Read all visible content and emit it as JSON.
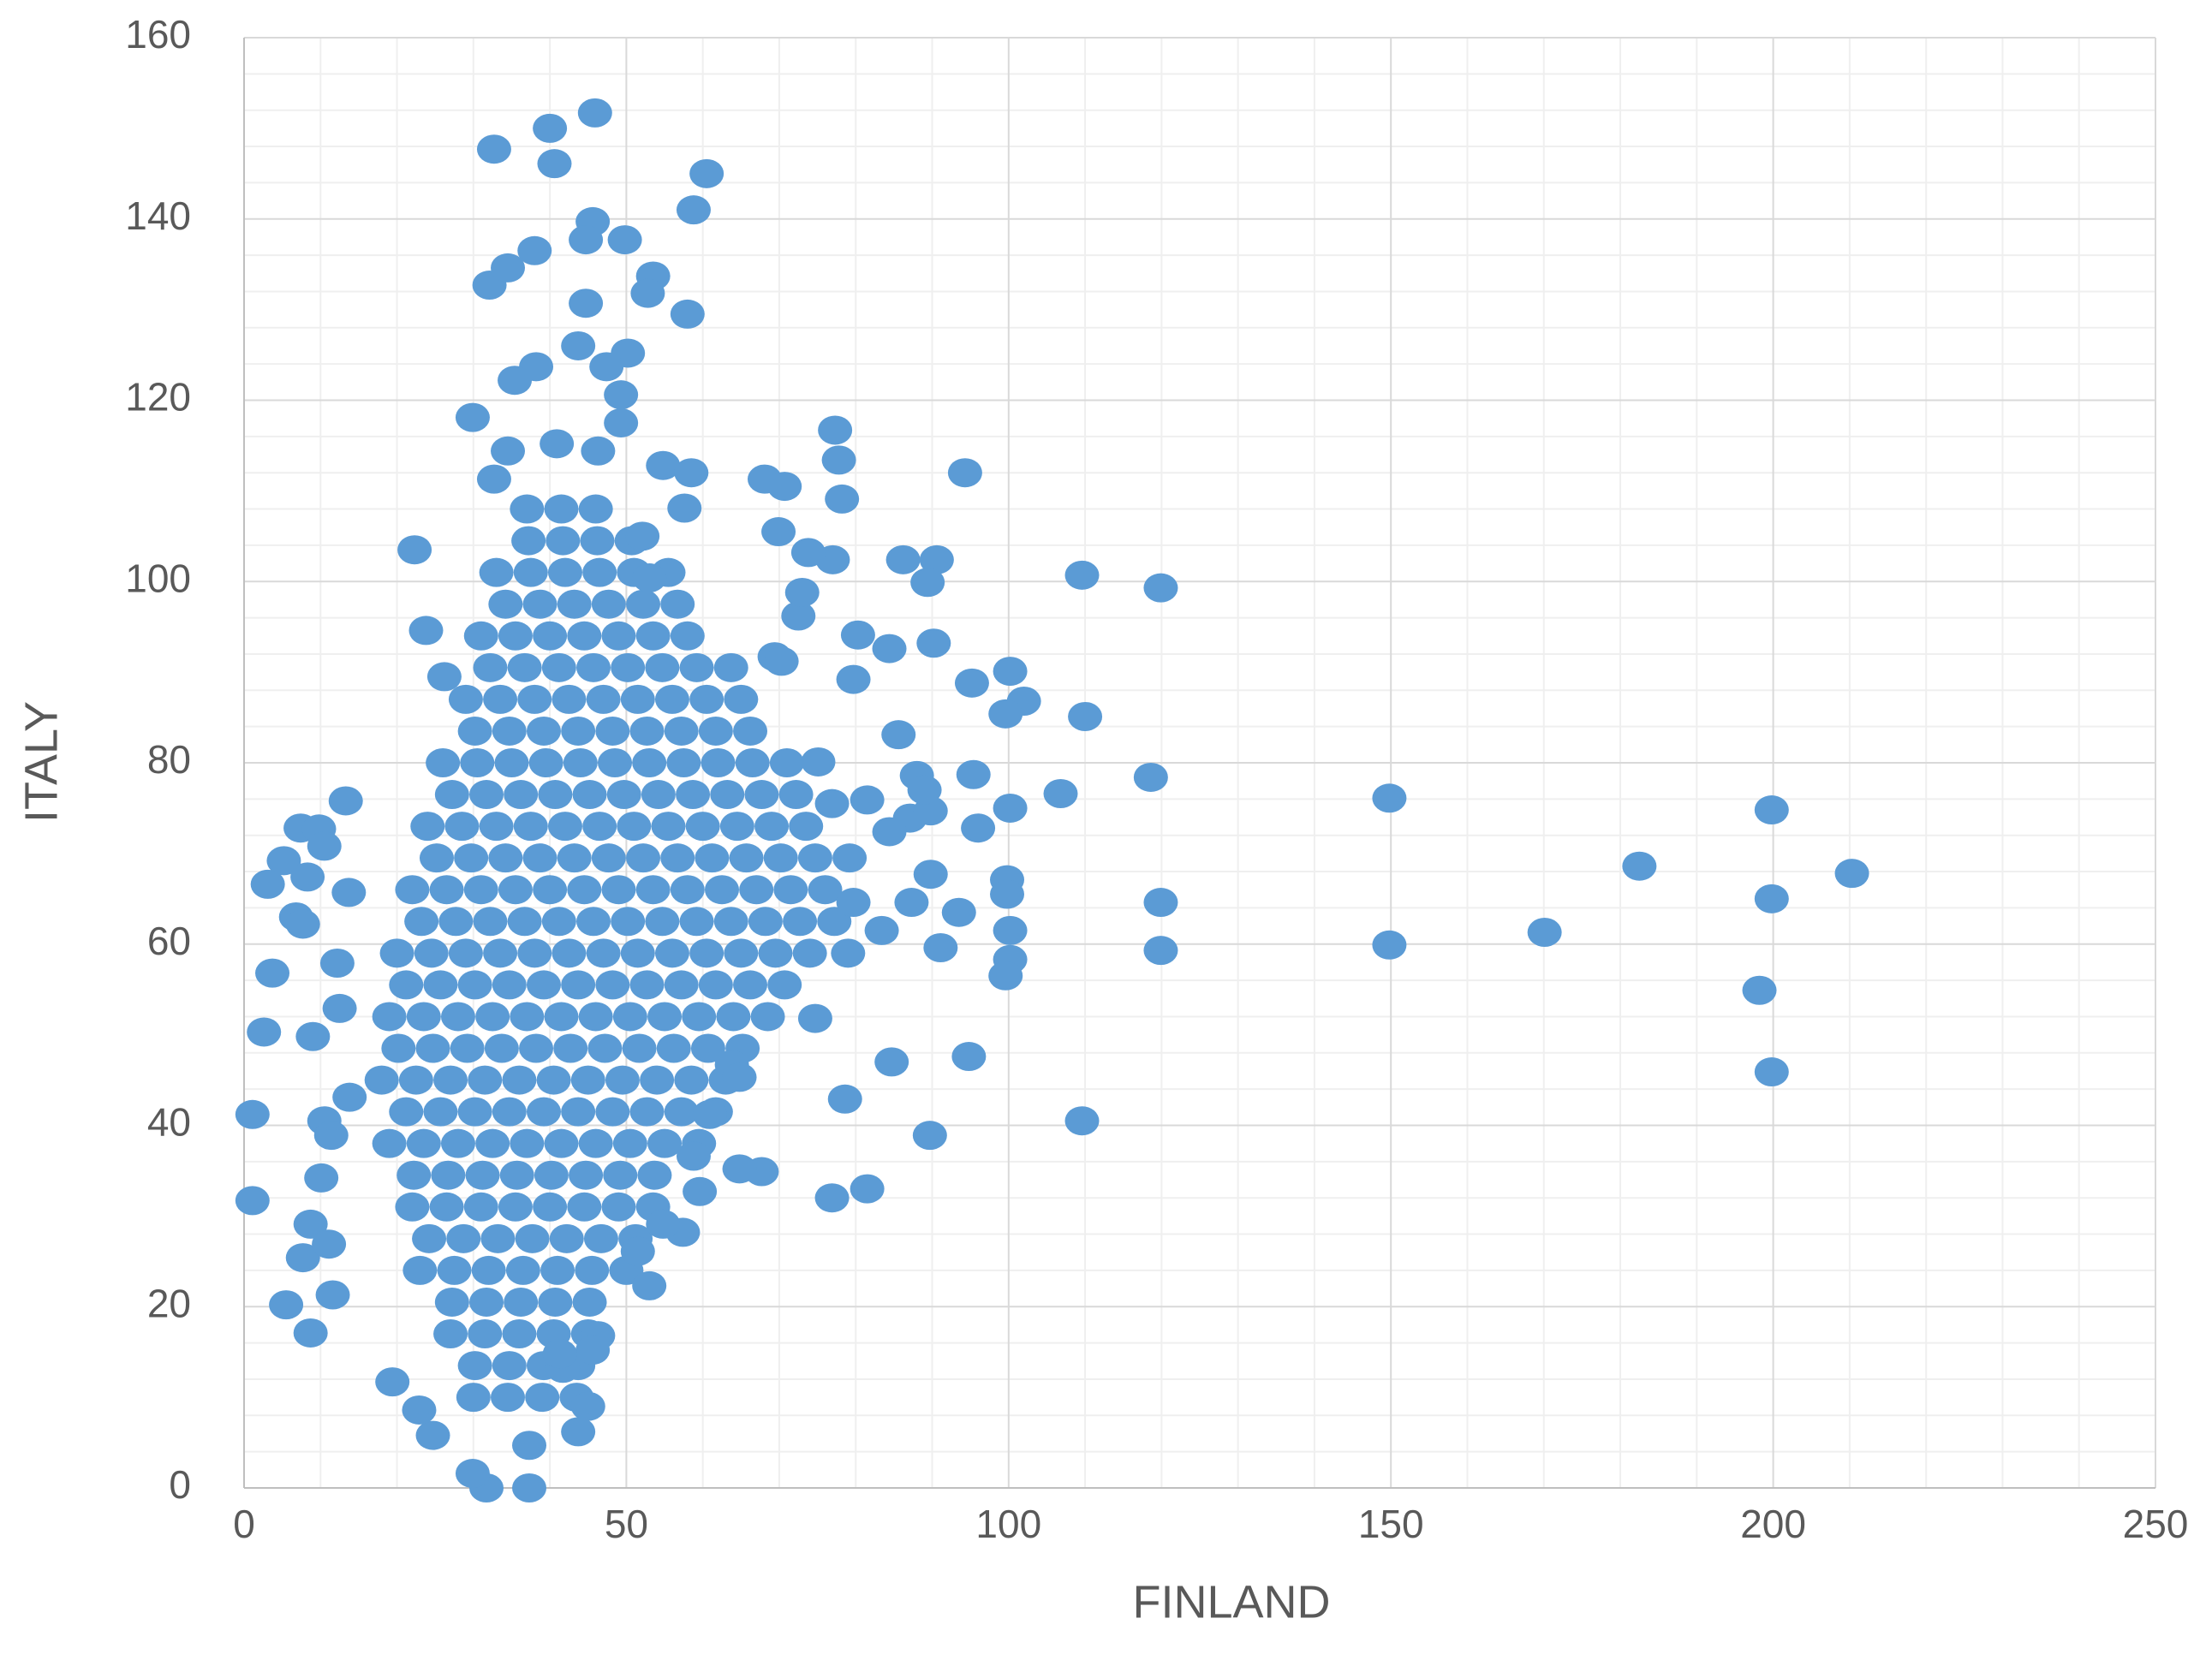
{
  "chart_data": {
    "type": "scatter",
    "x_label": "FINLAND",
    "y_label": "ITALY",
    "color": "#5b9bd5",
    "grid": true,
    "xlim": [
      0,
      250
    ],
    "xticks": [
      0,
      50,
      100,
      150,
      200,
      250
    ],
    "ylim": [
      0,
      160
    ],
    "yticks": [
      0,
      20,
      40,
      60,
      80,
      100,
      120,
      140,
      160
    ],
    "x": [
      30,
      34.5,
      39,
      43.5,
      30.2,
      34.7,
      39.2,
      43.7,
      27,
      31.5,
      36,
      40.5,
      45,
      27.2,
      31.7,
      36.2,
      40.7,
      45.2,
      23,
      27.5,
      32,
      36.5,
      41,
      45.5,
      50,
      24.2,
      28.7,
      33.2,
      37.7,
      42.2,
      46.7,
      51.2,
      22,
      26.5,
      31,
      35.5,
      40,
      44.5,
      49,
      53.5,
      22.2,
      26.7,
      31.2,
      35.7,
      40.2,
      44.7,
      49.2,
      53.7,
      19,
      23.5,
      28,
      32.5,
      37,
      41.5,
      46,
      50.5,
      55,
      59.5,
      21.2,
      25.7,
      30.2,
      34.7,
      39.2,
      43.7,
      48.2,
      52.7,
      57.2,
      61.7,
      18,
      22.5,
      27,
      31.5,
      36,
      40.5,
      45,
      49.5,
      54,
      58.5,
      63,
      20.2,
      24.7,
      29.2,
      33.7,
      38.2,
      42.7,
      47.2,
      51.7,
      56.2,
      60.7,
      65.2,
      19,
      23.5,
      28,
      32.5,
      37,
      41.5,
      46,
      50.5,
      55,
      59.5,
      64,
      68.5,
      21.2,
      25.7,
      30.2,
      34.7,
      39.2,
      43.7,
      48.2,
      52.7,
      57.2,
      61.7,
      66.2,
      70.7,
      20,
      24.5,
      29,
      33.5,
      38,
      42.5,
      47,
      51.5,
      56,
      60.5,
      65,
      69.5,
      74,
      23.2,
      27.7,
      32.2,
      36.7,
      41.2,
      45.7,
      50.2,
      54.7,
      59.2,
      63.7,
      68.2,
      72.7,
      77.2,
      22,
      26.5,
      31,
      35.5,
      40,
      44.5,
      49,
      53.5,
      58,
      62.5,
      67,
      71.5,
      76,
      25.2,
      29.7,
      34.2,
      38.7,
      43.2,
      47.7,
      52.2,
      56.7,
      61.2,
      65.7,
      70.2,
      74.7,
      79.2,
      24,
      28.5,
      33,
      37.5,
      42,
      46.5,
      51,
      55.5,
      60,
      64.5,
      69,
      73.5,
      27.2,
      31.7,
      36.2,
      40.7,
      45.2,
      49.7,
      54.2,
      58.7,
      63.2,
      67.7,
      72.2,
      26,
      30.5,
      35,
      39.5,
      44,
      48.5,
      53,
      57.5,
      62,
      66.5,
      71,
      30.2,
      34.7,
      39.2,
      43.7,
      48.2,
      52.7,
      57.2,
      61.7,
      66.2,
      29,
      33.5,
      38,
      42.5,
      47,
      51.5,
      56,
      60.5,
      65,
      32.2,
      36.7,
      41.2,
      45.7,
      50.2,
      54.7,
      59.2,
      63.7,
      31,
      35.5,
      40,
      44.5,
      49,
      53.5,
      58,
      34.2,
      38.7,
      43.2,
      47.7,
      52.2,
      56.7,
      33,
      37.5,
      42,
      46.5,
      51,
      55.5,
      37.2,
      41.7,
      46.2,
      50.7,
      37,
      41.5,
      46,
      210.3,
      199.8,
      199.8,
      199.8,
      198.2,
      182.5,
      170.1,
      149.8,
      149.8,
      119.9,
      119.9,
      119.9,
      118.6,
      109.6,
      110,
      109.6,
      106.8,
      100.2,
      102,
      99.6,
      100.2,
      99.8,
      99.8,
      100.2,
      100.2,
      99.6,
      94.3,
      95.2,
      95.4,
      96,
      94.8,
      89.7,
      86.2,
      90.6,
      89.4,
      90.2,
      84.4,
      85.6,
      91.1,
      93.5,
      84.7,
      81.5,
      76.9,
      78.6,
      79,
      77.3,
      77.8,
      78.2,
      80.3,
      79.7,
      81.5,
      77,
      73.8,
      68.1,
      70.7,
      69.9,
      72.5,
      73,
      69.4,
      70.3,
      67.7,
      64.8,
      74.7,
      60.5,
      58.8,
      58,
      53.5,
      52.8,
      49.8,
      45.9,
      40,
      40.6,
      32.7,
      45.6,
      44.7,
      38,
      32.1,
      34.5,
      44.7,
      29.9,
      22.3,
      23.8,
      26.2,
      13.3,
      7.4,
      9.8,
      10.5,
      5.2,
      8.3,
      3.1,
      6.8,
      7.7,
      13.7,
      12.2,
      3.7,
      2.6,
      9,
      12.5,
      1.1,
      1.1,
      10.1,
      8.7,
      7.7,
      11.1,
      11.6,
      5.5,
      8.7,
      19.4,
      10.5,
      11.4,
      13.8,
      53,
      51.5,
      57.4,
      54.8,
      46.3,
      45.6,
      45,
      43.7,
      37.3,
      31.7,
      29.9,
      24.7,
      22.9,
      41.7,
      41.3,
      37.3,
      59.6,
      58.8,
      60.9,
      63.8,
      64.8,
      87.3,
      89.8,
      87.1,
      88,
      89.8,
      89,
      84.4,
      83.4,
      79.7,
      76.9,
      75.1,
      53,
      52.1,
      57.6,
      54.8,
      58.5,
      49.3,
      49.3,
      50.2,
      47.4,
      43.7,
      38.2,
      35.4,
      32.7,
      34.5,
      40.9,
      46.3
    ],
    "values": [
      10,
      10,
      10,
      10,
      13.5,
      13.5,
      13.5,
      13.5,
      17,
      17,
      17,
      17,
      17,
      20.5,
      20.5,
      20.5,
      20.5,
      20.5,
      24,
      24,
      24,
      24,
      24,
      24,
      24,
      27.5,
      27.5,
      27.5,
      27.5,
      27.5,
      27.5,
      27.5,
      31,
      31,
      31,
      31,
      31,
      31,
      31,
      31,
      34.5,
      34.5,
      34.5,
      34.5,
      34.5,
      34.5,
      34.5,
      34.5,
      38,
      38,
      38,
      38,
      38,
      38,
      38,
      38,
      38,
      38,
      41.5,
      41.5,
      41.5,
      41.5,
      41.5,
      41.5,
      41.5,
      41.5,
      41.5,
      41.5,
      45,
      45,
      45,
      45,
      45,
      45,
      45,
      45,
      45,
      45,
      45,
      48.5,
      48.5,
      48.5,
      48.5,
      48.5,
      48.5,
      48.5,
      48.5,
      48.5,
      48.5,
      48.5,
      52,
      52,
      52,
      52,
      52,
      52,
      52,
      52,
      52,
      52,
      52,
      52,
      55.5,
      55.5,
      55.5,
      55.5,
      55.5,
      55.5,
      55.5,
      55.5,
      55.5,
      55.5,
      55.5,
      55.5,
      59,
      59,
      59,
      59,
      59,
      59,
      59,
      59,
      59,
      59,
      59,
      59,
      59,
      62.5,
      62.5,
      62.5,
      62.5,
      62.5,
      62.5,
      62.5,
      62.5,
      62.5,
      62.5,
      62.5,
      62.5,
      62.5,
      66,
      66,
      66,
      66,
      66,
      66,
      66,
      66,
      66,
      66,
      66,
      66,
      66,
      69.5,
      69.5,
      69.5,
      69.5,
      69.5,
      69.5,
      69.5,
      69.5,
      69.5,
      69.5,
      69.5,
      69.5,
      69.5,
      73,
      73,
      73,
      73,
      73,
      73,
      73,
      73,
      73,
      73,
      73,
      73,
      76.5,
      76.5,
      76.5,
      76.5,
      76.5,
      76.5,
      76.5,
      76.5,
      76.5,
      76.5,
      76.5,
      80,
      80,
      80,
      80,
      80,
      80,
      80,
      80,
      80,
      80,
      80,
      83.5,
      83.5,
      83.5,
      83.5,
      83.5,
      83.5,
      83.5,
      83.5,
      83.5,
      87,
      87,
      87,
      87,
      87,
      87,
      87,
      87,
      87,
      90.5,
      90.5,
      90.5,
      90.5,
      90.5,
      90.5,
      90.5,
      90.5,
      94,
      94,
      94,
      94,
      94,
      94,
      94,
      97.5,
      97.5,
      97.5,
      97.5,
      97.5,
      97.5,
      101,
      101,
      101,
      101,
      101,
      101,
      104.5,
      104.5,
      104.5,
      104.5,
      108,
      108,
      108,
      67.8,
      74.8,
      65,
      45.9,
      54.9,
      68.6,
      61.3,
      76.1,
      59.9,
      99.3,
      64.6,
      59.3,
      78.4,
      100.7,
      85.1,
      40.5,
      76.6,
      90.1,
      86.8,
      85.4,
      75,
      67.1,
      65.5,
      61.5,
      58.3,
      56.5,
      112,
      88.8,
      78.7,
      72.8,
      47.6,
      38.9,
      102.4,
      102.4,
      99.9,
      93.2,
      92.6,
      83.1,
      59.6,
      63.5,
      47,
      33,
      32,
      42.9,
      59,
      116.7,
      113.4,
      109.1,
      94.1,
      89.2,
      75.9,
      102.4,
      103.2,
      111.3,
      110.5,
      105.5,
      96.2,
      98.8,
      91.7,
      91.2,
      34.9,
      35.2,
      51.8,
      145,
      141,
      129.5,
      133.7,
      131.8,
      137.7,
      151.7,
      150,
      146.1,
      147.7,
      139.7,
      137.7,
      136.5,
      132.7,
      134.6,
      130.7,
      118.1,
      103.5,
      94.6,
      89.5,
      75.8,
      72.8,
      72.7,
      70.8,
      69.2,
      67.4,
      66.6,
      63,
      62.2,
      65.7,
      57.9,
      56.8,
      50.3,
      49.8,
      52.9,
      41.2,
      31.7,
      34.2,
      29.1,
      25.4,
      26.9,
      21.3,
      20.2,
      17.1,
      11.7,
      40.5,
      38.9,
      43.1,
      22.3,
      26.1,
      28.2,
      29.1,
      16.8,
      15.2,
      9,
      6.2,
      0,
      0,
      1.6,
      5.8,
      8.6,
      13.2,
      14.8,
      4.7,
      32.7,
      36.6,
      41.2,
      46.7,
      45.3,
      64.6,
      67.7,
      73.9,
      78.6,
      74.7,
      77,
      72.4,
      61.5,
      64.6,
      75.5,
      80.1,
      100.4,
      105,
      108.1,
      112.8,
      112,
      117.5,
      120.6,
      125.2,
      123.7,
      126,
      123.7,
      122.2,
      111.3,
      114.4,
      115.2,
      114.4
    ]
  }
}
